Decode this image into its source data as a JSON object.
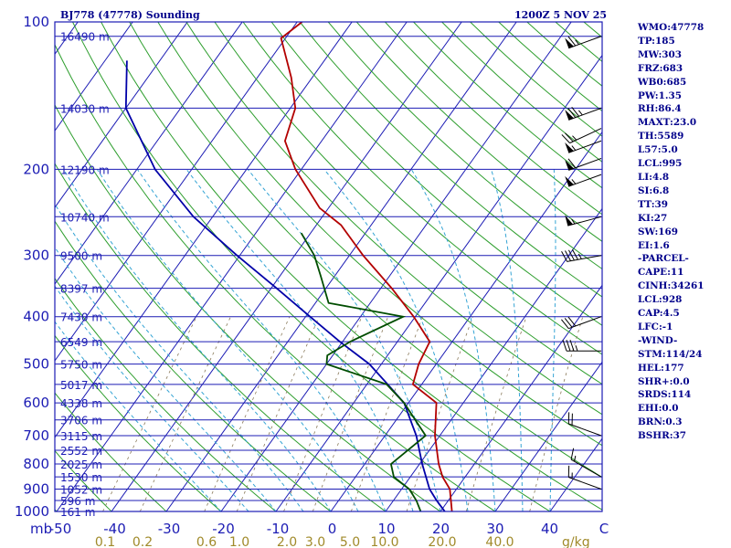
{
  "header": {
    "station": "BJ778 (47778) Sounding",
    "time": "1200Z  5 NOV 25"
  },
  "indices": [
    "WMO:47778",
    "TP:185",
    "MW:303",
    "FRZ:683",
    "WB0:685",
    "PW:1.35",
    "RH:86.4",
    "MAXT:23.0",
    "TH:5589",
    "L57:5.0",
    "LCL:995",
    "LI:4.8",
    "SI:6.8",
    "TT:39",
    "KI:27",
    "SW:169",
    "EI:1.6",
    "-PARCEL-",
    "CAPE:11",
    "CINH:34261",
    "LCL:928",
    "CAP:4.5",
    "LFC:-1",
    "-WIND-",
    "STM:114/24",
    "HEL:177",
    "SHR+:0.0",
    "SRDS:114",
    "EHI:0.0",
    "BRN:0.3",
    "BSHR:37"
  ],
  "colors": {
    "frame": "#1c1cb4",
    "isotherm": "#1c1cb4",
    "dry_adiabat": "#2e9e2e",
    "moist_adiabat": "#35a4d4",
    "mixing_ratio": "#8a7a5a",
    "temperature": "#b30000",
    "dewpoint": "#004d00",
    "parcel": "#0000a8",
    "wind": "#000000",
    "index_text": "#00008b",
    "mix_label": "#a08a2a"
  },
  "chart_data": {
    "type": "skew-t log-p sounding",
    "title": "BJ778 (47778) Sounding",
    "valid_time": "1200Z  5 NOV 25",
    "xlabel": "C",
    "ylabel": "mb",
    "x_range_C": [
      -50,
      50
    ],
    "p_range_mb": [
      100,
      1000
    ],
    "pressure_ticks_mb": [
      100,
      200,
      300,
      400,
      500,
      600,
      700,
      800,
      900,
      1000
    ],
    "temperature_ticks_C": [
      "-50",
      "-40",
      "-30",
      "-20",
      "-10",
      "0",
      "10",
      "20",
      "30",
      "40",
      "C"
    ],
    "mixing_ratio_label_unit": "g/kg",
    "mixing_ratio_labels": [
      "0.1",
      "0.2",
      "0.6",
      "1.0",
      "2.0",
      "3.0",
      "5.0",
      "10.0",
      "20.0",
      "40.0"
    ],
    "height_levels": [
      {
        "p": 107,
        "label": "16490 m"
      },
      {
        "p": 150,
        "label": "14030 m"
      },
      {
        "p": 200,
        "label": "12190 m"
      },
      {
        "p": 250,
        "label": "10740 m"
      },
      {
        "p": 300,
        "label": "9500 m"
      },
      {
        "p": 350,
        "label": "8397 m"
      },
      {
        "p": 400,
        "label": "7430 m"
      },
      {
        "p": 450,
        "label": "6549 m"
      },
      {
        "p": 500,
        "label": "5750 m"
      },
      {
        "p": 550,
        "label": "5017 m"
      },
      {
        "p": 600,
        "label": "4338 m"
      },
      {
        "p": 650,
        "label": "3706 m"
      },
      {
        "p": 700,
        "label": "3115 m"
      },
      {
        "p": 750,
        "label": "2552 m"
      },
      {
        "p": 800,
        "label": "2025 m"
      },
      {
        "p": 850,
        "label": "1530 m"
      },
      {
        "p": 900,
        "label": "1052 m"
      },
      {
        "p": 950,
        "label": "596 m"
      },
      {
        "p": 1000,
        "label": "161 m"
      }
    ],
    "temperature": [
      {
        "p": 100,
        "t": -69.1
      },
      {
        "p": 108,
        "t": -70.8
      },
      {
        "p": 130,
        "t": -63.8
      },
      {
        "p": 150,
        "t": -59.1
      },
      {
        "p": 175,
        "t": -56.7
      },
      {
        "p": 200,
        "t": -51.1
      },
      {
        "p": 240,
        "t": -41.6
      },
      {
        "p": 260,
        "t": -35.5
      },
      {
        "p": 300,
        "t": -27.5
      },
      {
        "p": 350,
        "t": -18.0
      },
      {
        "p": 400,
        "t": -10.3
      },
      {
        "p": 450,
        "t": -4.1
      },
      {
        "p": 500,
        "t": -3.2
      },
      {
        "p": 550,
        "t": -1.6
      },
      {
        "p": 600,
        "t": 5.1
      },
      {
        "p": 700,
        "t": 9.1
      },
      {
        "p": 800,
        "t": 13.5
      },
      {
        "p": 850,
        "t": 15.9
      },
      {
        "p": 900,
        "t": 18.8
      },
      {
        "p": 950,
        "t": 20.5
      },
      {
        "p": 1000,
        "t": 22.1
      }
    ],
    "dewpoint": [
      {
        "p": 270,
        "t": -41.7
      },
      {
        "p": 300,
        "t": -36.4
      },
      {
        "p": 330,
        "t": -32.6
      },
      {
        "p": 375,
        "t": -27.6
      },
      {
        "p": 400,
        "t": -12.2
      },
      {
        "p": 450,
        "t": -18.6
      },
      {
        "p": 480,
        "t": -21.0
      },
      {
        "p": 500,
        "t": -20.0
      },
      {
        "p": 550,
        "t": -6.4
      },
      {
        "p": 600,
        "t": -0.8
      },
      {
        "p": 700,
        "t": 7.4
      },
      {
        "p": 800,
        "t": 4.8
      },
      {
        "p": 850,
        "t": 7.0
      },
      {
        "p": 900,
        "t": 11.4
      },
      {
        "p": 950,
        "t": 14.2
      },
      {
        "p": 1000,
        "t": 16.4
      }
    ],
    "parcel": [
      {
        "p": 120,
        "t": -96.0
      },
      {
        "p": 150,
        "t": -90.0
      },
      {
        "p": 200,
        "t": -76.7
      },
      {
        "p": 250,
        "t": -63.5
      },
      {
        "p": 300,
        "t": -50.5
      },
      {
        "p": 350,
        "t": -39.0
      },
      {
        "p": 400,
        "t": -29.2
      },
      {
        "p": 450,
        "t": -20.5
      },
      {
        "p": 500,
        "t": -12.2
      },
      {
        "p": 550,
        "t": -6.2
      },
      {
        "p": 600,
        "t": -0.8
      },
      {
        "p": 700,
        "t": 5.7
      },
      {
        "p": 800,
        "t": 10.5
      },
      {
        "p": 900,
        "t": 15.1
      },
      {
        "p": 950,
        "t": 17.9
      },
      {
        "p": 1000,
        "t": 20.8
      }
    ],
    "winds": [
      {
        "p": 107,
        "dir": 250,
        "spd": 65
      },
      {
        "p": 150,
        "dir": 250,
        "spd": 75
      },
      {
        "p": 165,
        "dir": 245,
        "spd": 25
      },
      {
        "p": 175,
        "dir": 250,
        "spd": 55
      },
      {
        "p": 190,
        "dir": 250,
        "spd": 60
      },
      {
        "p": 205,
        "dir": 250,
        "spd": 55
      },
      {
        "p": 250,
        "dir": 255,
        "spd": 55
      },
      {
        "p": 300,
        "dir": 260,
        "spd": 45
      },
      {
        "p": 400,
        "dir": 250,
        "spd": 30
      },
      {
        "p": 470,
        "dir": 270,
        "spd": 35
      },
      {
        "p": 700,
        "dir": 290,
        "spd": 20
      },
      {
        "p": 850,
        "dir": 300,
        "spd": 15
      },
      {
        "p": 900,
        "dir": 290,
        "spd": 15
      }
    ]
  }
}
